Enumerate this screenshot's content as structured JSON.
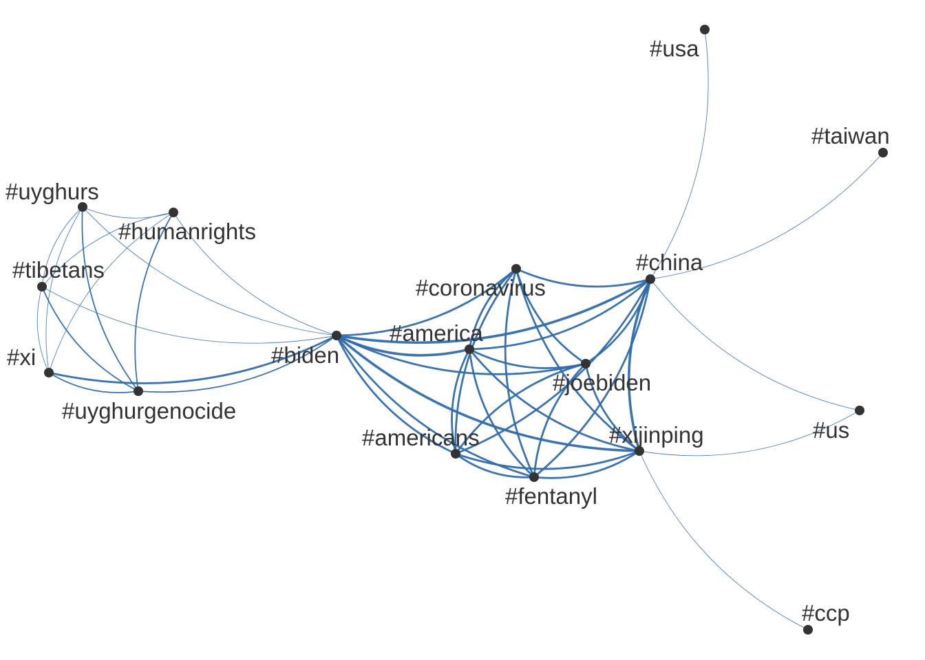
{
  "colors": {
    "edge": "#2f6bab",
    "node": "#333333",
    "label": "#333333",
    "background": "#ffffff"
  },
  "nodes": [
    {
      "id": "uyghurs",
      "label": "#uyghurs"
    },
    {
      "id": "humanrights",
      "label": "#humanrights"
    },
    {
      "id": "tibetans",
      "label": "#tibetans"
    },
    {
      "id": "xi",
      "label": "#xi"
    },
    {
      "id": "uyghurgenocide",
      "label": "#uyghurgenocide"
    },
    {
      "id": "biden",
      "label": "#biden"
    },
    {
      "id": "coronavirus",
      "label": "#coronavirus"
    },
    {
      "id": "america",
      "label": "#america"
    },
    {
      "id": "joebiden",
      "label": "#joebiden"
    },
    {
      "id": "americans",
      "label": "#americans"
    },
    {
      "id": "fentanyl",
      "label": "#fentanyl"
    },
    {
      "id": "xijinping",
      "label": "#xijinping"
    },
    {
      "id": "china",
      "label": "#china"
    },
    {
      "id": "usa",
      "label": "#usa"
    },
    {
      "id": "taiwan",
      "label": "#taiwan"
    },
    {
      "id": "us",
      "label": "#us"
    },
    {
      "id": "ccp",
      "label": "#ccp"
    }
  ],
  "edges": [
    {
      "source": "uyghurs",
      "target": "humanrights",
      "weight": 1
    },
    {
      "source": "uyghurs",
      "target": "tibetans",
      "weight": 1
    },
    {
      "source": "uyghurs",
      "target": "xi",
      "weight": 1
    },
    {
      "source": "uyghurs",
      "target": "uyghurgenocide",
      "weight": 2
    },
    {
      "source": "uyghurs",
      "target": "biden",
      "weight": 1
    },
    {
      "source": "humanrights",
      "target": "tibetans",
      "weight": 1
    },
    {
      "source": "humanrights",
      "target": "xi",
      "weight": 1
    },
    {
      "source": "humanrights",
      "target": "uyghurgenocide",
      "weight": 2
    },
    {
      "source": "humanrights",
      "target": "biden",
      "weight": 1
    },
    {
      "source": "tibetans",
      "target": "xi",
      "weight": 1
    },
    {
      "source": "tibetans",
      "target": "uyghurgenocide",
      "weight": 2
    },
    {
      "source": "tibetans",
      "target": "biden",
      "weight": 1
    },
    {
      "source": "xi",
      "target": "uyghurgenocide",
      "weight": 2
    },
    {
      "source": "xi",
      "target": "biden",
      "weight": 3
    },
    {
      "source": "uyghurgenocide",
      "target": "biden",
      "weight": 2
    },
    {
      "source": "biden",
      "target": "coronavirus",
      "weight": 3
    },
    {
      "source": "biden",
      "target": "america",
      "weight": 4
    },
    {
      "source": "biden",
      "target": "china",
      "weight": 4
    },
    {
      "source": "biden",
      "target": "joebiden",
      "weight": 3
    },
    {
      "source": "biden",
      "target": "americans",
      "weight": 3
    },
    {
      "source": "biden",
      "target": "fentanyl",
      "weight": 3
    },
    {
      "source": "biden",
      "target": "xijinping",
      "weight": 4
    },
    {
      "source": "coronavirus",
      "target": "china",
      "weight": 3
    },
    {
      "source": "coronavirus",
      "target": "america",
      "weight": 3
    },
    {
      "source": "coronavirus",
      "target": "americans",
      "weight": 3
    },
    {
      "source": "coronavirus",
      "target": "fentanyl",
      "weight": 3
    },
    {
      "source": "coronavirus",
      "target": "joebiden",
      "weight": 3
    },
    {
      "source": "coronavirus",
      "target": "xijinping",
      "weight": 3
    },
    {
      "source": "america",
      "target": "china",
      "weight": 3
    },
    {
      "source": "america",
      "target": "joebiden",
      "weight": 3
    },
    {
      "source": "america",
      "target": "americans",
      "weight": 3
    },
    {
      "source": "america",
      "target": "fentanyl",
      "weight": 3
    },
    {
      "source": "america",
      "target": "xijinping",
      "weight": 3
    },
    {
      "source": "joebiden",
      "target": "china",
      "weight": 3
    },
    {
      "source": "joebiden",
      "target": "xijinping",
      "weight": 3
    },
    {
      "source": "joebiden",
      "target": "americans",
      "weight": 3
    },
    {
      "source": "joebiden",
      "target": "fentanyl",
      "weight": 3
    },
    {
      "source": "americans",
      "target": "china",
      "weight": 3
    },
    {
      "source": "americans",
      "target": "xijinping",
      "weight": 3
    },
    {
      "source": "americans",
      "target": "fentanyl",
      "weight": 3
    },
    {
      "source": "fentanyl",
      "target": "china",
      "weight": 3
    },
    {
      "source": "fentanyl",
      "target": "xijinping",
      "weight": 3
    },
    {
      "source": "china",
      "target": "xijinping",
      "weight": 4
    },
    {
      "source": "china",
      "target": "usa",
      "weight": 1
    },
    {
      "source": "china",
      "target": "taiwan",
      "weight": 1
    },
    {
      "source": "china",
      "target": "us",
      "weight": 1
    },
    {
      "source": "xijinping",
      "target": "us",
      "weight": 1
    },
    {
      "source": "xijinping",
      "target": "ccp",
      "weight": 1
    }
  ]
}
